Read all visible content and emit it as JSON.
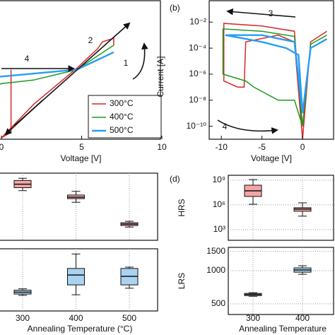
{
  "chart_data": [
    {
      "type": "line",
      "xlabel": "Voltage [V]",
      "xlim": [
        -10,
        10
      ],
      "xticks": [
        0,
        5,
        10
      ],
      "ylim": [
        -10,
        10
      ],
      "annotations": [
        "2",
        "4",
        "1"
      ],
      "series": [
        {
          "name": "300°C",
          "color": "#d62728",
          "x": [
            0.6,
            0.6,
            0,
            2,
            4.7,
            6,
            6.3,
            7,
            7
          ],
          "values": [
            0,
            -9,
            -9.8,
            -5,
            0.2,
            3,
            4,
            4.5,
            3.5
          ]
        },
        {
          "name": "400°C",
          "color": "#1f9a1f",
          "x": [
            -10,
            -1,
            -0.8,
            0,
            2,
            4.7,
            7
          ],
          "values": [
            0.3,
            0.3,
            -3,
            -2,
            -1.5,
            0,
            3.5
          ]
        },
        {
          "name": "500°C",
          "color": "#2a9df4",
          "x": [
            -10,
            -3,
            -2.6,
            0,
            4.7,
            7
          ],
          "values": [
            0.2,
            0.2,
            -1.5,
            -1,
            0,
            2.5
          ]
        }
      ]
    },
    {
      "type": "line",
      "panel_label": "(b)",
      "xlabel": "Voltage [V]",
      "ylabel": "Current [A]",
      "ylog": true,
      "xlim": [
        -11.5,
        4
      ],
      "xticks": [
        -10,
        -5,
        0
      ],
      "ylim": [
        1e-11,
        0.5
      ],
      "yticks": [
        {
          "value": 0.01,
          "label": "10⁻²"
        },
        {
          "value": 0.0001,
          "label": "10⁻⁴"
        },
        {
          "value": 1e-06,
          "label": "10⁻⁶"
        },
        {
          "value": 1e-08,
          "label": "10⁻⁸"
        },
        {
          "value": 1e-10,
          "label": "10⁻¹⁰"
        }
      ],
      "annotations": [
        "3",
        "4"
      ],
      "series": [
        {
          "color": "#d62728",
          "x": [
            3,
            1,
            0,
            -1,
            -5,
            -9.7,
            -9.7,
            -8,
            -7.2,
            -7,
            -3,
            -1,
            0
          ],
          "values": [
            0.002,
            0.0003,
            1e-11,
            0.002,
            0.005,
            0.008,
            3e-07,
            1e-07,
            1e-07,
            0.0003,
            0.001,
            0.0003,
            1e-11
          ]
        },
        {
          "color": "#1f9a1f",
          "x": [
            3,
            1,
            0,
            -1,
            -5,
            -9.8,
            -9.8,
            -7,
            -6,
            -3,
            -1,
            0
          ],
          "values": [
            0.001,
            0.0002,
            1e-10,
            0.0008,
            0.002,
            0.003,
            1e-06,
            3e-07,
            1e-07,
            1e-08,
            1e-08,
            1e-10
          ]
        },
        {
          "color": "#2a9df4",
          "x": [
            3,
            1,
            0,
            -1,
            -5,
            -9.5,
            -5,
            -2,
            -0.5,
            0
          ],
          "values": [
            0.0005,
            0.0001,
            1e-09,
            0.0003,
            0.001,
            0.001,
            0.0003,
            0.0001,
            3e-05,
            1e-09
          ]
        }
      ]
    },
    {
      "type": "box",
      "xlabel": "Annealing Temperature (°C)",
      "categories": [
        "300",
        "400",
        "500"
      ],
      "panels": [
        {
          "ylog": true,
          "ylim": [
            50,
            4000000000
          ],
          "fill": "#f4a6a6",
          "boxes": [
            {
              "whislo": 35000000,
              "q1": 78000000,
              "med": 200000000,
              "q3": 550000000,
              "whishi": 1000000000
            },
            {
              "whislo": 1500000,
              "q1": 4000000,
              "med": 5900000,
              "q3": 10700000,
              "whishi": 29000000
            },
            {
              "whislo": 1800,
              "q1": 2700,
              "med": 4000,
              "q3": 5900,
              "whishi": 8700
            }
          ]
        },
        {
          "ylog": true,
          "ylim": [
            400,
            1630
          ],
          "fill": "#a9d3f0",
          "boxes": [
            {
              "whislo": 569,
              "q1": 586,
              "med": 612,
              "q3": 640,
              "whishi": 660
            },
            {
              "whislo": 577,
              "q1": 721,
              "med": 901,
              "q3": 1045,
              "whishi": 1449
            },
            {
              "whislo": 669,
              "q1": 721,
              "med": 875,
              "q3": 1045,
              "whishi": 1077
            }
          ]
        }
      ]
    },
    {
      "type": "box",
      "panel_label": "(d)",
      "xlabel": "Annealing Temperature",
      "categories": [
        "300",
        "400"
      ],
      "panels": [
        {
          "ylabel": "HRS",
          "ylog": true,
          "ylim": [
            50,
            4000000000
          ],
          "fill": "#f4a6a6",
          "yticks": [
            {
              "value": 1000000000,
              "label": "10⁹"
            },
            {
              "value": 1000000,
              "label": "10⁶"
            },
            {
              "value": 1000,
              "label": "10³"
            }
          ],
          "boxes": [
            {
              "whislo": 1200000,
              "q1": 10700000,
              "med": 51000000,
              "q3": 250000000,
              "whishi": 1200000000
            },
            {
              "whislo": 43000,
              "q1": 170000,
              "med": 310000,
              "q3": 460000,
              "whishi": 1800000
            }
          ]
        },
        {
          "ylabel": "LRS",
          "ylog": true,
          "ylim": [
            400,
            1630
          ],
          "fill": "#a9d3f0",
          "yticks": [
            1500,
            1000,
            500
          ],
          "boxes": [
            {
              "whislo": 586,
              "q1": 594,
              "med": 608,
              "q3": 622,
              "whishi": 631
            },
            {
              "whislo": 928,
              "q1": 970,
              "med": 1015,
              "q3": 1061,
              "whishi": 1109
            }
          ]
        }
      ]
    }
  ]
}
